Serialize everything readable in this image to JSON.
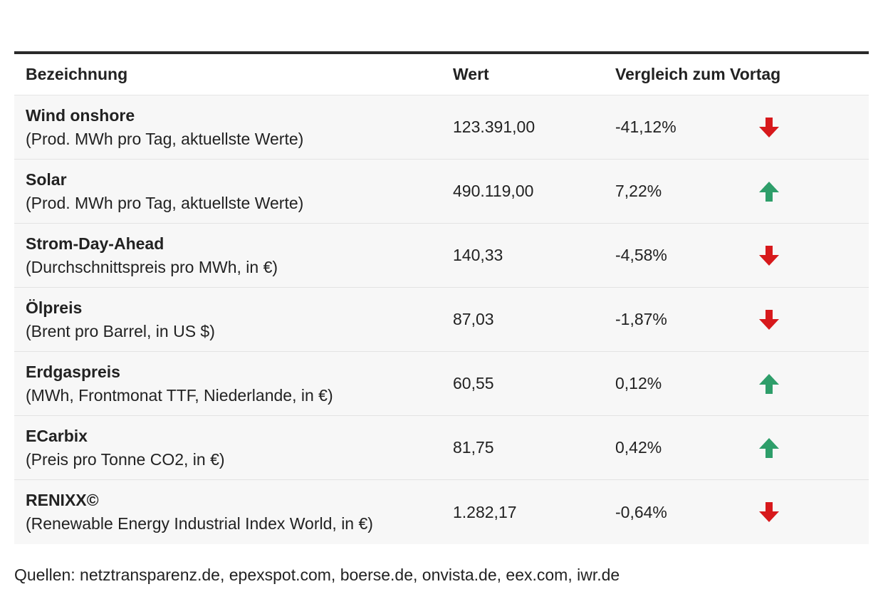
{
  "chart_data": {
    "type": "table",
    "columns": [
      "Bezeichnung",
      "Wert",
      "Vergleich zum Vortag"
    ],
    "rows": [
      {
        "name": "Wind onshore",
        "sub": "(Prod. MWh pro Tag, aktuellste Werte)",
        "value": "123.391,00",
        "change": "-41,12%",
        "direction": "down"
      },
      {
        "name": "Solar",
        "sub": "(Prod. MWh pro Tag, aktuellste Werte)",
        "value": "490.119,00",
        "change": "7,22%",
        "direction": "up"
      },
      {
        "name": "Strom-Day-Ahead",
        "sub": "(Durchschnittspreis pro MWh, in €)",
        "value": "140,33",
        "change": "-4,58%",
        "direction": "down"
      },
      {
        "name": "Ölpreis",
        "sub": "(Brent pro Barrel, in US $)",
        "value": "87,03",
        "change": "-1,87%",
        "direction": "down"
      },
      {
        "name": "Erdgaspreis",
        "sub": "(MWh, Frontmonat TTF, Niederlande, in €)",
        "value": "60,55",
        "change": "0,12%",
        "direction": "up"
      },
      {
        "name": "ECarbix",
        "sub": "(Preis pro Tonne CO2, in €)",
        "value": "81,75",
        "change": "0,42%",
        "direction": "up"
      },
      {
        "name": "RENIXX©",
        "sub": "(Renewable Energy Industrial Index World, in €)",
        "value": "1.282,17",
        "change": "-0,64%",
        "direction": "down"
      }
    ],
    "source": "Quellen: netztransparenz.de, epexspot.com, boerse.de, onvista.de, eex.com, iwr.de"
  },
  "colors": {
    "up_arrow": "#2e9e6a",
    "down_arrow": "#d7191c",
    "row_background": "#f7f7f7",
    "header_rule": "#2a2a2a"
  },
  "icons": {
    "up": "arrow-up-icon",
    "down": "arrow-down-icon"
  }
}
